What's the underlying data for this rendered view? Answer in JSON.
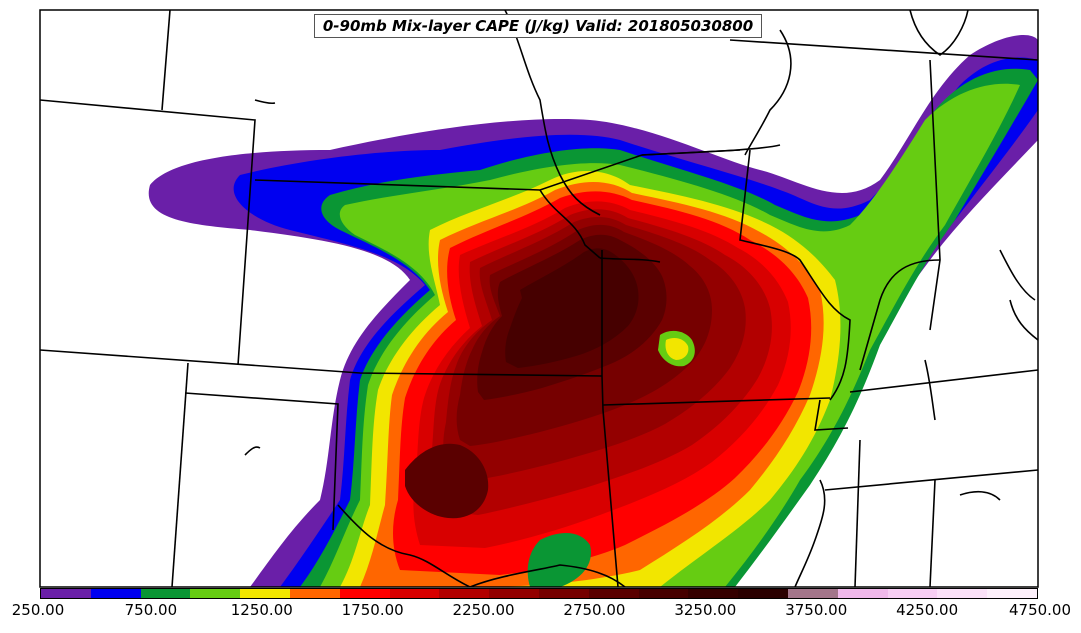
{
  "title": "0-90mb Mix-layer CAPE (J/kg) Valid: 201805030800",
  "map_data": {
    "variable": "0-90mb Mix-layer CAPE",
    "units": "J/kg",
    "valid_time": "201805030800",
    "colorbar": {
      "min": 250,
      "max": 4750,
      "interval": 250,
      "tick_labels": [
        "250.00",
        "750.00",
        "1250.00",
        "1750.00",
        "2250.00",
        "2750.00",
        "3250.00",
        "3750.00",
        "4250.00",
        "4750.00"
      ],
      "colors": [
        "#6a1fa8",
        "#0000f0",
        "#0a9634",
        "#66cc12",
        "#f2e600",
        "#ff6600",
        "#ff0000",
        "#d80000",
        "#b20000",
        "#930000",
        "#760000",
        "#5a0000",
        "#460000",
        "#350000",
        "#2a0000",
        "#a3758a",
        "#f0b8ea",
        "#f7cef3",
        "#fbe1f8",
        "#fdf0fb"
      ]
    }
  }
}
